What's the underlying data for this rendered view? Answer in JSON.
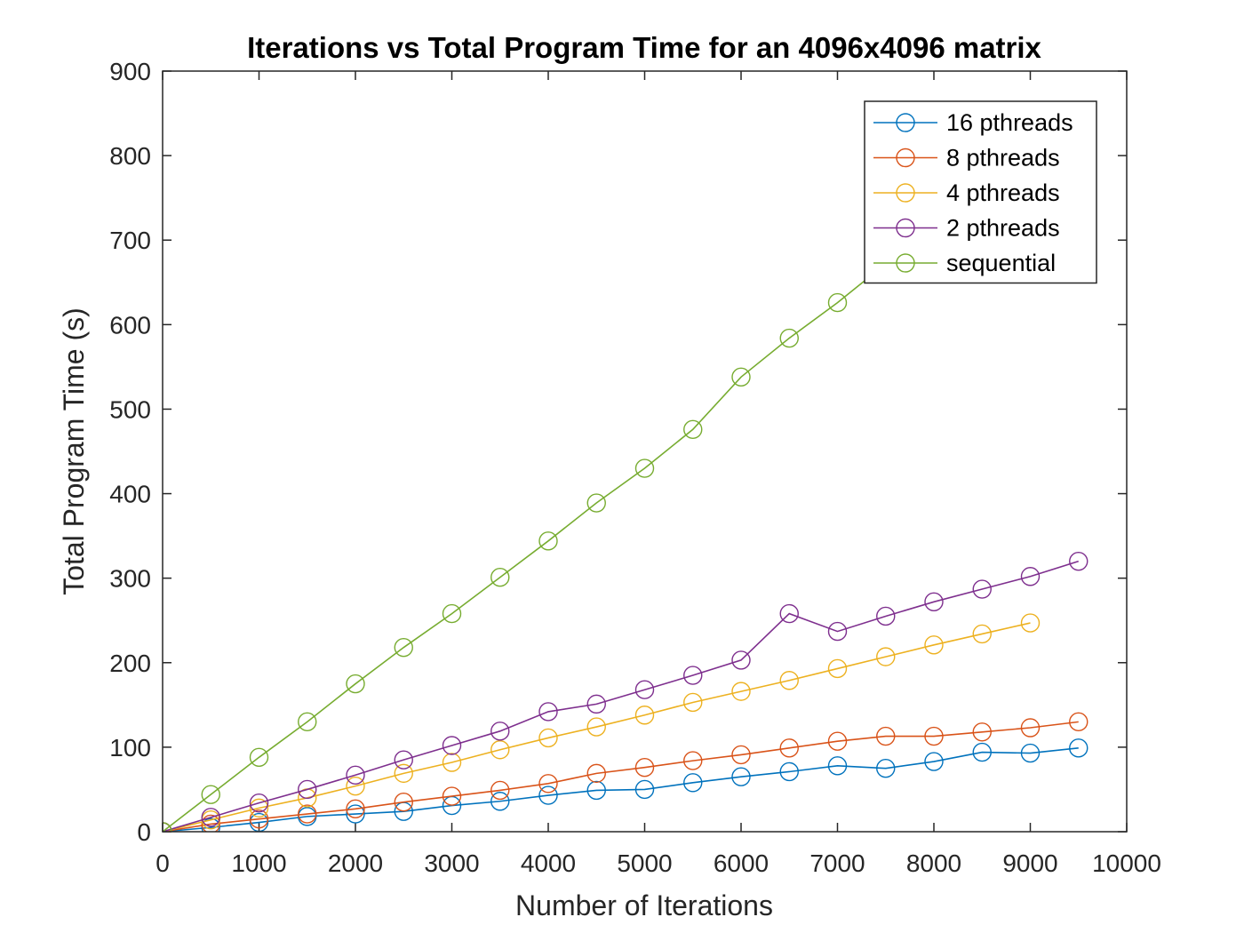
{
  "chart_data": {
    "type": "line",
    "title": "Iterations vs Total Program Time for an 4096x4096 matrix",
    "xlabel": "Number of Iterations",
    "ylabel": "Total Program Time (s)",
    "xlim": [
      0,
      10000
    ],
    "ylim": [
      0,
      900
    ],
    "xticks": [
      0,
      1000,
      2000,
      3000,
      4000,
      5000,
      6000,
      7000,
      8000,
      9000,
      10000
    ],
    "yticks": [
      0,
      100,
      200,
      300,
      400,
      500,
      600,
      700,
      800,
      900
    ],
    "grid": false,
    "legend_position": "top-right",
    "marker": "circle",
    "series": [
      {
        "name": "16 pthreads",
        "color": "#0072BD",
        "x": [
          0,
          500,
          1000,
          1500,
          2000,
          2500,
          3000,
          3500,
          4000,
          4500,
          5000,
          5500,
          6000,
          6500,
          7000,
          7500,
          8000,
          8500,
          9000,
          9500
        ],
        "y": [
          0,
          5,
          11,
          18,
          21,
          24,
          31,
          36,
          43,
          49,
          50,
          58,
          65,
          71,
          78,
          75,
          83,
          94,
          93,
          99
        ]
      },
      {
        "name": "8 pthreads",
        "color": "#D95319",
        "x": [
          0,
          500,
          1000,
          1500,
          2000,
          2500,
          3000,
          3500,
          4000,
          4500,
          5000,
          5500,
          6000,
          6500,
          7000,
          7500,
          8000,
          8500,
          9000,
          9500
        ],
        "y": [
          0,
          9,
          15,
          21,
          27,
          35,
          42,
          49,
          57,
          69,
          76,
          84,
          91,
          99,
          107,
          113,
          113,
          118,
          123,
          130
        ]
      },
      {
        "name": "4 pthreads",
        "color": "#EDB120",
        "x": [
          0,
          500,
          1000,
          1500,
          2000,
          2500,
          3000,
          3500,
          4000,
          4500,
          5000,
          5500,
          6000,
          6500,
          7000,
          7500,
          8000,
          8500,
          9000
        ],
        "y": [
          0,
          14,
          28,
          40,
          54,
          69,
          82,
          97,
          111,
          124,
          138,
          153,
          166,
          179,
          193,
          207,
          221,
          234,
          247
        ]
      },
      {
        "name": "2 pthreads",
        "color": "#7E2F8E",
        "x": [
          0,
          500,
          1000,
          1500,
          2000,
          2500,
          3000,
          3500,
          4000,
          4500,
          5000,
          5500,
          6000,
          6500,
          7000,
          7500,
          8000,
          8500,
          9000,
          9500
        ],
        "y": [
          0,
          17,
          34,
          50,
          67,
          85,
          102,
          119,
          142,
          151,
          168,
          185,
          203,
          258,
          237,
          255,
          272,
          287,
          302,
          320
        ]
      },
      {
        "name": "sequential",
        "color": "#77AC30",
        "x": [
          0,
          500,
          1000,
          1500,
          2000,
          2500,
          3000,
          3500,
          4000,
          4500,
          5000,
          5500,
          6000,
          6500,
          7000,
          7500,
          8000,
          8500,
          9000,
          9500
        ],
        "y": [
          0,
          44,
          88,
          130,
          175,
          218,
          258,
          301,
          344,
          389,
          430,
          476,
          538,
          584,
          626,
          672,
          716,
          760,
          803,
          846
        ]
      }
    ]
  }
}
